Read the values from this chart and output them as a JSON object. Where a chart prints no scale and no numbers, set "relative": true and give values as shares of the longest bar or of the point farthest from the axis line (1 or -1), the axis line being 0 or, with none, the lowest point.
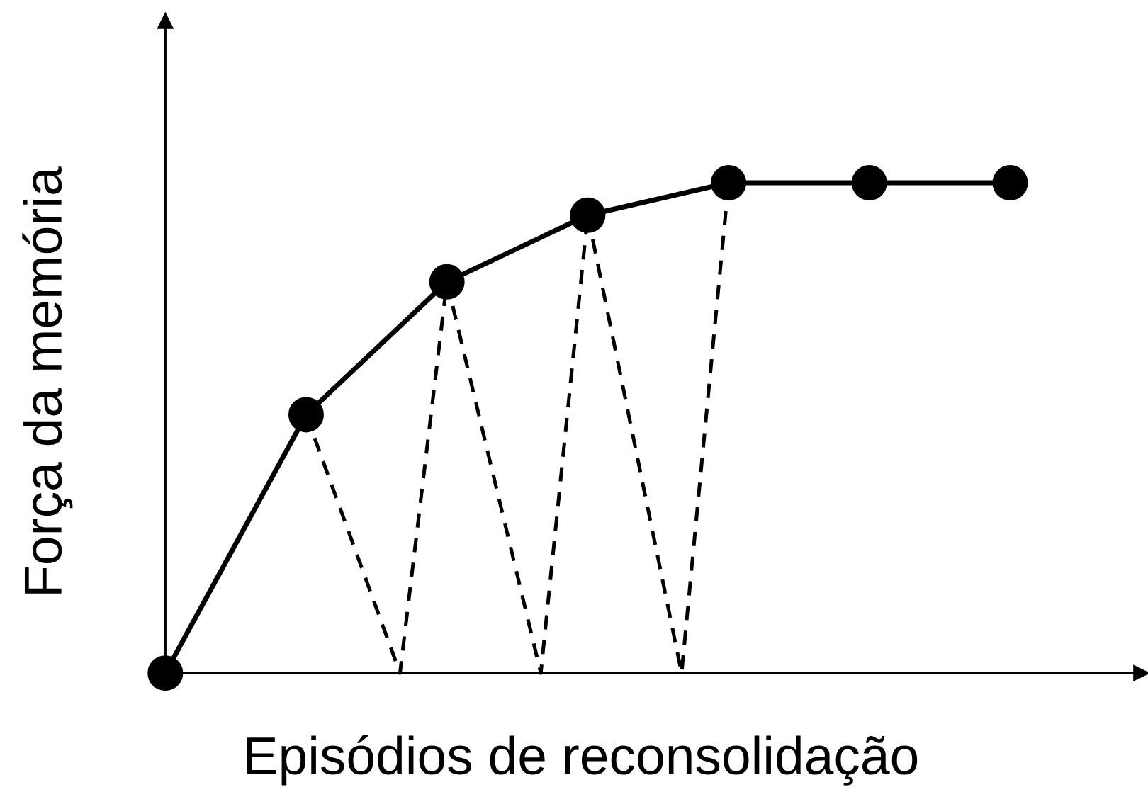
{
  "chart_data": {
    "type": "line",
    "relative": true,
    "xlabel": "Episódios de reconsolidação",
    "ylabel": "Força da memória",
    "categories": [
      null,
      null,
      null,
      null,
      null,
      null,
      null,
      null,
      null,
      null,
      null,
      null,
      null,
      null,
      null,
      null,
      null,
      null,
      null
    ],
    "series": [
      {
        "color": "#000000",
        "marker": "circle",
        "line_style": "solid",
        "values": [
          0,
          null,
          null,
          0.527,
          null,
          null,
          0.798,
          null,
          null,
          0.934,
          null,
          null,
          1,
          null,
          null,
          1,
          null,
          null,
          1
        ]
      },
      {
        "color": "#000000",
        "marker": "none",
        "line_style": "dashed",
        "values": [
          null,
          null,
          null,
          0.527,
          null,
          0,
          0.798,
          null,
          null,
          null,
          null,
          null,
          null,
          null,
          null,
          null,
          null,
          null,
          null
        ]
      },
      {
        "color": "#000000",
        "marker": "none",
        "line_style": "dashed",
        "values": [
          null,
          null,
          null,
          null,
          null,
          null,
          0.798,
          null,
          0,
          0.934,
          null,
          null,
          null,
          null,
          null,
          null,
          null,
          null,
          null
        ]
      },
      {
        "color": "#000000",
        "marker": "none",
        "line_style": "dashed",
        "values": [
          null,
          null,
          null,
          null,
          null,
          null,
          null,
          null,
          null,
          0.934,
          null,
          0,
          1,
          null,
          null,
          null,
          null,
          null,
          null
        ]
      }
    ]
  }
}
